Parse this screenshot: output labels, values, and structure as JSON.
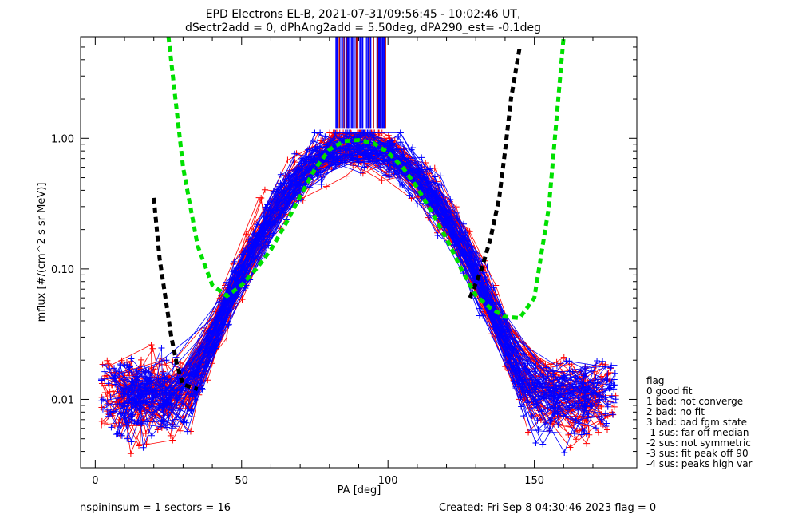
{
  "title_line1": "EPD Electrons EL-B, 2021-07-31/09:56:45 - 10:02:46 UT,",
  "title_line2": "dSectr2add = 0, dPhAng2add = 5.50deg, dPA290_est=  -0.1deg",
  "footer": {
    "left": "nspininsum =  1  sectors = 16",
    "right": "Created: Fri Sep  8 04:30:46 2023   flag = 0"
  },
  "legend": {
    "title": "flag",
    "entries": [
      " 0 good fit",
      " 1 bad: not converge",
      " 2 bad: no fit",
      " 3 bad: bad fgm state",
      "-1 sus: far off median",
      "-2 sus: not symmetric",
      "-3 sus: fit peak off 90",
      "-4 sus: peaks high var"
    ]
  },
  "colors": {
    "red_series": "#ff0000",
    "blue_series": "#0000ff",
    "green_fit": "#00e000",
    "black_fit": "#000000",
    "dark_red_marker": "#b00000"
  },
  "chart_data": {
    "type": "line",
    "xlabel": "PA [deg]",
    "ylabel": "mflux [#/(cm^2 s sr MeV)]",
    "xlim": [
      -5,
      185
    ],
    "ylim": [
      0.003,
      6
    ],
    "yscale": "log",
    "xticks": [
      0,
      50,
      100,
      150
    ],
    "xtick_labels": [
      "0",
      "50",
      "100",
      "150"
    ],
    "yticks": [
      0.01,
      0.1,
      1.0
    ],
    "ytick_labels": [
      "0.01",
      "0.10",
      "1.00"
    ],
    "grid": false,
    "marker": "+",
    "spins_red": 60,
    "spins_blue": 60,
    "sector_pa_left": [
      8,
      14,
      20,
      28,
      40,
      52,
      64,
      76,
      86
    ],
    "sector_pa_right": [
      96,
      106,
      116,
      128,
      140,
      152,
      162,
      172
    ],
    "green_fit_curve": {
      "x": [
        25,
        30,
        35,
        40,
        45,
        50,
        55,
        60,
        65,
        70,
        75,
        80,
        85,
        90,
        95,
        100,
        105,
        110,
        115,
        120,
        125,
        130,
        135,
        140,
        145,
        150,
        155,
        160
      ],
      "y": [
        6.0,
        0.6,
        0.15,
        0.075,
        0.062,
        0.075,
        0.1,
        0.14,
        0.22,
        0.36,
        0.58,
        0.82,
        0.95,
        0.97,
        0.92,
        0.78,
        0.6,
        0.42,
        0.27,
        0.17,
        0.1,
        0.063,
        0.05,
        0.043,
        0.042,
        0.06,
        0.3,
        6.0
      ]
    },
    "black_fit_left": {
      "x": [
        20,
        22,
        24,
        26,
        28,
        30,
        35
      ],
      "y": [
        0.35,
        0.12,
        0.06,
        0.03,
        0.018,
        0.013,
        0.012
      ]
    },
    "black_fit_right": {
      "x": [
        128,
        132,
        135,
        138,
        140,
        142,
        145
      ],
      "y": [
        0.06,
        0.1,
        0.17,
        0.35,
        0.8,
        2.0,
        5.0
      ]
    },
    "peak_lines_x_range": [
      82,
      100
    ]
  }
}
